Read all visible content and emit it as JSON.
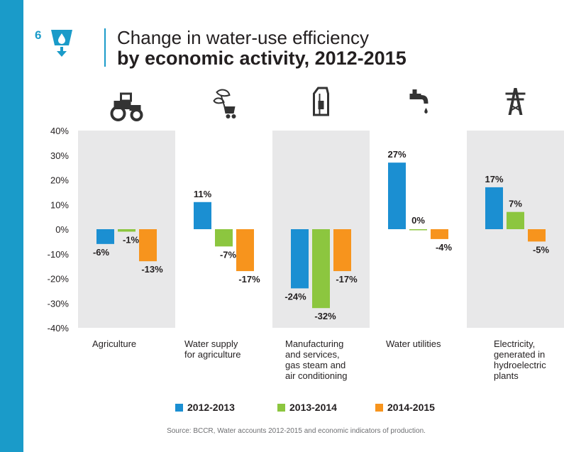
{
  "goal_badge": {
    "number": "6",
    "icon": "water-drop-goal-icon"
  },
  "title": {
    "line1": "Change in water-use efficiency",
    "line2": "by economic activity, 2012-2015"
  },
  "source": "Source: BCCR, Water accounts 2012-2015 and economic indicators of production.",
  "colors": {
    "accent": "#1a9bc9",
    "series": [
      "#1b8fd2",
      "#8cc63f",
      "#f7941d"
    ],
    "band": "#e8e8e9"
  },
  "chart_data": {
    "type": "bar",
    "ylim": [
      -40,
      40
    ],
    "yticks": [
      "40%",
      "30%",
      "20%",
      "10%",
      "0%",
      "-10%",
      "-20%",
      "-30%",
      "-40%"
    ],
    "categories": [
      "Agriculture",
      "Water supply\nfor agriculture",
      "Manufacturing\nand services,\ngas steam and\nair conditioning",
      "Water utilities",
      "Electricity,\ngenerated in\nhydroelectric\nplants"
    ],
    "category_icons": [
      "tractor-icon",
      "plant-cart-icon",
      "milk-carton-icon",
      "water-tap-icon",
      "power-tower-icon"
    ],
    "series": [
      {
        "name": "2012-2013",
        "values": [
          -6,
          11,
          -24,
          27,
          17
        ],
        "labels": [
          "-6%",
          "11%",
          "-24%",
          "27%",
          "17%"
        ]
      },
      {
        "name": "2013-2014",
        "values": [
          -1,
          -7,
          -32,
          0,
          7
        ],
        "labels": [
          "-1%",
          "-7%",
          "-32%",
          "0%",
          "7%"
        ]
      },
      {
        "name": "2014-2015",
        "values": [
          -13,
          -17,
          -17,
          -4,
          -5
        ],
        "labels": [
          "-13%",
          "-17%",
          "-17%",
          "-4%",
          "-5%"
        ]
      }
    ],
    "grid": false,
    "legend_position": "bottom"
  }
}
